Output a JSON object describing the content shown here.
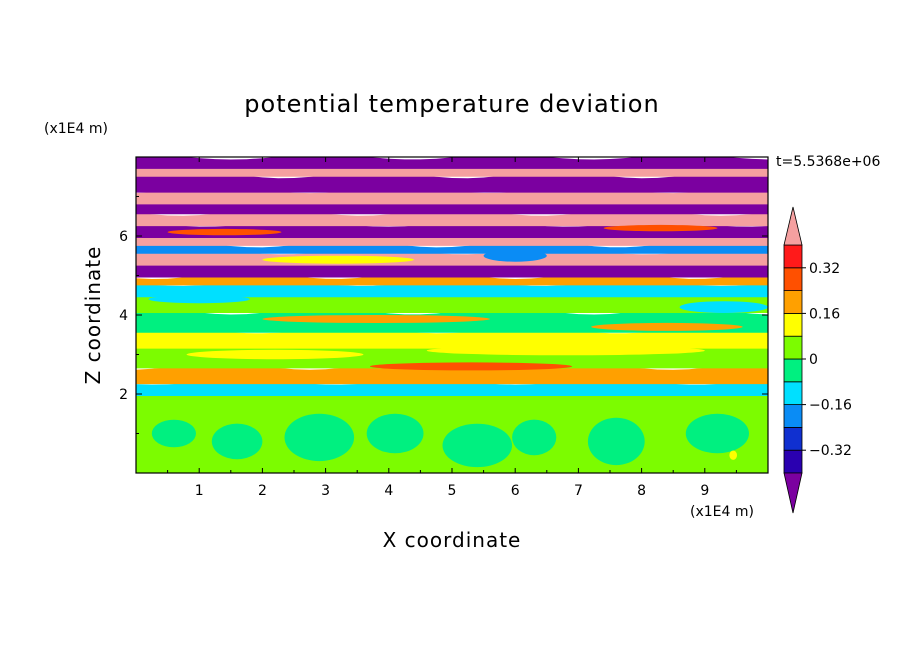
{
  "chart_data": {
    "type": "heatmap",
    "title": "potential temperature deviation",
    "xlabel": "X coordinate",
    "ylabel": "Z coordinate",
    "x_unit": "(x1E4 m)",
    "y_unit": "(x1E4 m)",
    "time_label": "t=5.5368e+06",
    "xlim": [
      0,
      10
    ],
    "ylim": [
      0,
      8
    ],
    "x_ticks": [
      1,
      2,
      3,
      4,
      5,
      6,
      7,
      8,
      9
    ],
    "y_ticks": [
      2,
      4,
      6
    ],
    "grid": false,
    "colorbar": {
      "position": "right",
      "levels": [
        -0.4,
        -0.32,
        -0.24,
        -0.16,
        -0.08,
        0,
        0.08,
        0.16,
        0.24,
        0.32,
        0.4
      ],
      "labeled": [
        {
          "value": 0.32,
          "text": "0.32"
        },
        {
          "value": 0.16,
          "text": "0.16"
        },
        {
          "value": 0,
          "text": "0"
        },
        {
          "value": -0.16,
          "text": "−0.16"
        },
        {
          "value": -0.32,
          "text": "−0.32"
        }
      ],
      "colors": [
        "#7b00a0",
        "#2a00b0",
        "#1030d0",
        "#0a8cf5",
        "#00e0ff",
        "#00f080",
        "#7cfc00",
        "#ffff00",
        "#ffa000",
        "#ff5000",
        "#ff1a1a",
        "#f5a0a0"
      ]
    },
    "layers": [
      {
        "z0": 0.0,
        "z1": 2.0,
        "value": 0.04
      },
      {
        "z0": 2.0,
        "z1": 2.3,
        "value": -0.12
      },
      {
        "z0": 2.3,
        "z1": 2.7,
        "value": 0.2
      },
      {
        "z0": 2.7,
        "z1": 3.2,
        "value": 0.04
      },
      {
        "z0": 3.2,
        "z1": 3.6,
        "value": 0.12
      },
      {
        "z0": 3.6,
        "z1": 4.1,
        "value": -0.04
      },
      {
        "z0": 4.1,
        "z1": 4.5,
        "value": 0.04
      },
      {
        "z0": 4.5,
        "z1": 4.8,
        "value": -0.12
      },
      {
        "z0": 4.8,
        "z1": 5.0,
        "value": 0.2
      },
      {
        "z0": 5.0,
        "z1": 5.3,
        "value": -0.44
      },
      {
        "z0": 5.3,
        "z1": 5.6,
        "value": 0.44
      },
      {
        "z0": 5.6,
        "z1": 5.8,
        "value": -0.2
      },
      {
        "z0": 5.8,
        "z1": 6.0,
        "value": 0.44
      },
      {
        "z0": 6.0,
        "z1": 6.3,
        "value": -0.44
      },
      {
        "z0": 6.3,
        "z1": 6.6,
        "value": 0.44
      },
      {
        "z0": 6.6,
        "z1": 6.85,
        "value": -0.44
      },
      {
        "z0": 6.85,
        "z1": 7.15,
        "value": 0.44
      },
      {
        "z0": 7.15,
        "z1": 7.55,
        "value": -0.44
      },
      {
        "z0": 7.55,
        "z1": 7.75,
        "value": 0.44
      },
      {
        "z0": 7.75,
        "z1": 8.0,
        "value": -0.44
      }
    ],
    "eddies": [
      {
        "x": 0.6,
        "z": 1.0,
        "rx": 0.35,
        "rz": 0.35,
        "value": -0.04
      },
      {
        "x": 1.6,
        "z": 0.8,
        "rx": 0.4,
        "rz": 0.45,
        "value": -0.04
      },
      {
        "x": 2.9,
        "z": 0.9,
        "rx": 0.55,
        "rz": 0.6,
        "value": -0.04
      },
      {
        "x": 4.1,
        "z": 1.0,
        "rx": 0.45,
        "rz": 0.5,
        "value": -0.04
      },
      {
        "x": 5.4,
        "z": 0.7,
        "rx": 0.55,
        "rz": 0.55,
        "value": -0.04
      },
      {
        "x": 6.3,
        "z": 0.9,
        "rx": 0.35,
        "rz": 0.45,
        "value": -0.04
      },
      {
        "x": 7.6,
        "z": 0.8,
        "rx": 0.45,
        "rz": 0.6,
        "value": -0.04
      },
      {
        "x": 9.2,
        "z": 1.0,
        "rx": 0.5,
        "rz": 0.5,
        "value": -0.04
      },
      {
        "x": 9.45,
        "z": 0.45,
        "rx": 0.06,
        "rz": 0.12,
        "value": 0.12
      },
      {
        "x": 2.2,
        "z": 3.0,
        "rx": 1.4,
        "rz": 0.12,
        "value": 0.12
      },
      {
        "x": 6.8,
        "z": 3.1,
        "rx": 2.2,
        "rz": 0.12,
        "value": 0.12
      },
      {
        "x": 5.3,
        "z": 2.7,
        "rx": 1.6,
        "rz": 0.1,
        "value": 0.28
      },
      {
        "x": 3.8,
        "z": 3.9,
        "rx": 1.8,
        "rz": 0.1,
        "value": 0.2
      },
      {
        "x": 8.4,
        "z": 3.7,
        "rx": 1.2,
        "rz": 0.1,
        "value": 0.2
      },
      {
        "x": 1.0,
        "z": 4.4,
        "rx": 0.8,
        "rz": 0.1,
        "value": -0.12
      },
      {
        "x": 9.3,
        "z": 4.2,
        "rx": 0.7,
        "rz": 0.15,
        "value": -0.12
      },
      {
        "x": 3.2,
        "z": 5.4,
        "rx": 1.2,
        "rz": 0.1,
        "value": 0.12
      },
      {
        "x": 6.0,
        "z": 5.5,
        "rx": 0.5,
        "rz": 0.15,
        "value": -0.2
      },
      {
        "x": 1.4,
        "z": 6.1,
        "rx": 0.9,
        "rz": 0.08,
        "value": 0.28
      },
      {
        "x": 8.3,
        "z": 6.2,
        "rx": 0.9,
        "rz": 0.08,
        "value": 0.28
      }
    ]
  }
}
